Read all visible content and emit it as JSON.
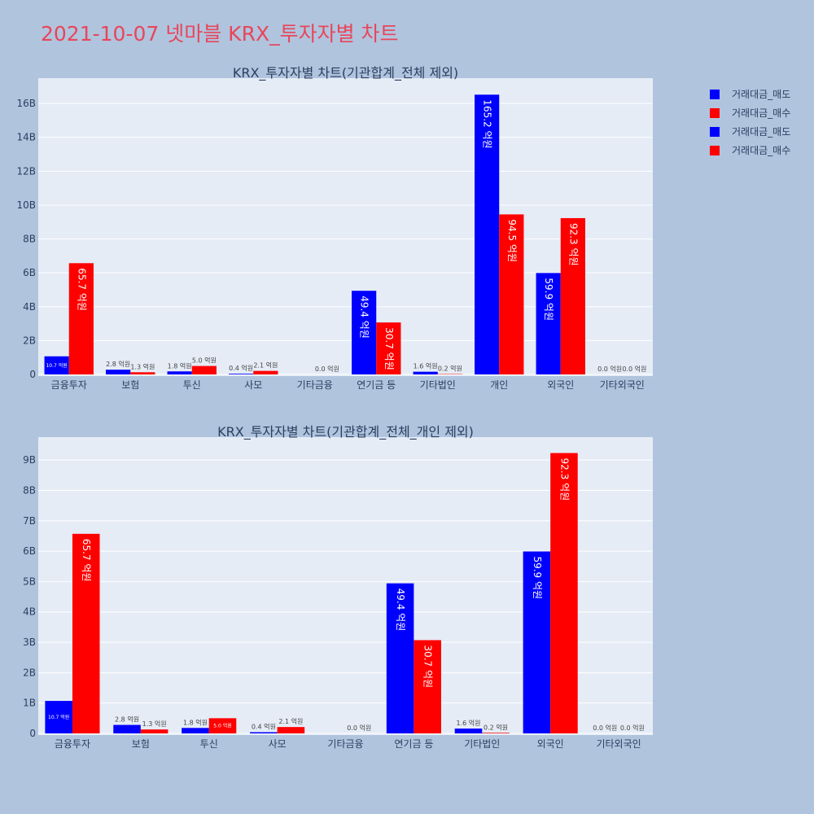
{
  "page": {
    "title": "2021-10-07 넷마블 KRX_투자자별 차트"
  },
  "legend": [
    {
      "label": "거래대금_매도",
      "color": "#0000ff"
    },
    {
      "label": "거래대금_매수",
      "color": "#ff0000"
    },
    {
      "label": "거래대금_매도",
      "color": "#0000ff"
    },
    {
      "label": "거래대금_매수",
      "color": "#ff0000"
    }
  ],
  "colors": {
    "sell": "#0000ff",
    "buy": "#ff0000",
    "plot_bg": "#e5ecf6",
    "page_bg": "#b0c4de"
  },
  "chart_data": [
    {
      "type": "bar",
      "title": "KRX_투자자별 차트(기관합계_전체 제외)",
      "categories": [
        "금융투자",
        "보험",
        "투신",
        "사모",
        "기타금융",
        "연기금 등",
        "기타법인",
        "개인",
        "외국인",
        "기타외국인"
      ],
      "series": [
        {
          "name": "거래대금_매도",
          "color": "#0000ff",
          "values": [
            1070000000.0,
            280000000.0,
            180000000.0,
            40000000.0,
            0,
            4940000000.0,
            160000000.0,
            16520000000.0,
            5990000000.0,
            0
          ],
          "labels": [
            "10.7 억원",
            "2.8 억원",
            "1.8 억원",
            "0.4 억원",
            "",
            "49.4 억원",
            "1.6 억원",
            "165.2 억원",
            "59.9 억원",
            "0.0 억원"
          ]
        },
        {
          "name": "거래대금_매수",
          "color": "#ff0000",
          "values": [
            6570000000.0,
            130000000.0,
            500000000.0,
            210000000.0,
            0,
            3070000000.0,
            20000000.0,
            9450000000.0,
            9230000000.0,
            0
          ],
          "labels": [
            "65.7 억원",
            "1.3 억원",
            "5.0 억원",
            "2.1 억원",
            "0.0 억원",
            "30.7 억원",
            "0.2 억원",
            "94.5 억원",
            "92.3 억원",
            "0.0 억원"
          ]
        }
      ],
      "yticks": [
        0,
        2000000000.0,
        4000000000.0,
        6000000000.0,
        8000000000.0,
        10000000000.0,
        12000000000.0,
        14000000000.0,
        16000000000.0
      ],
      "ytick_labels": [
        "0",
        "2B",
        "4B",
        "6B",
        "8B",
        "10B",
        "12B",
        "14B",
        "16B"
      ],
      "ylim": [
        0,
        17400000000.0
      ],
      "grid": true,
      "legend_position": "right"
    },
    {
      "type": "bar",
      "title": "KRX_투자자별 차트(기관합계_전체_개인 제외)",
      "categories": [
        "금융투자",
        "보험",
        "투신",
        "사모",
        "기타금융",
        "연기금 등",
        "기타법인",
        "외국인",
        "기타외국인"
      ],
      "series": [
        {
          "name": "거래대금_매도",
          "color": "#0000ff",
          "values": [
            1070000000.0,
            280000000.0,
            180000000.0,
            40000000.0,
            0,
            4940000000.0,
            160000000.0,
            5990000000.0,
            0
          ],
          "labels": [
            "10.7 억원",
            "2.8 억원",
            "1.8 억원",
            "0.4 억원",
            "",
            "49.4 억원",
            "1.6 억원",
            "59.9 억원",
            "0.0 억원"
          ]
        },
        {
          "name": "거래대금_매수",
          "color": "#ff0000",
          "values": [
            6570000000.0,
            130000000.0,
            500000000.0,
            210000000.0,
            0,
            3070000000.0,
            20000000.0,
            9230000000.0,
            0
          ],
          "labels": [
            "65.7 억원",
            "1.3 억원",
            "5.0 억원",
            "2.1 억원",
            "0.0 억원",
            "30.7 억원",
            "0.2 억원",
            "92.3 억원",
            "0.0 억원"
          ]
        }
      ],
      "yticks": [
        0,
        1000000000.0,
        2000000000.0,
        3000000000.0,
        4000000000.0,
        5000000000.0,
        6000000000.0,
        7000000000.0,
        8000000000.0,
        9000000000.0
      ],
      "ytick_labels": [
        "0",
        "1B",
        "2B",
        "3B",
        "4B",
        "5B",
        "6B",
        "7B",
        "8B",
        "9B"
      ],
      "ylim": [
        0,
        9700000000.0
      ],
      "grid": true,
      "legend_position": "right"
    }
  ]
}
